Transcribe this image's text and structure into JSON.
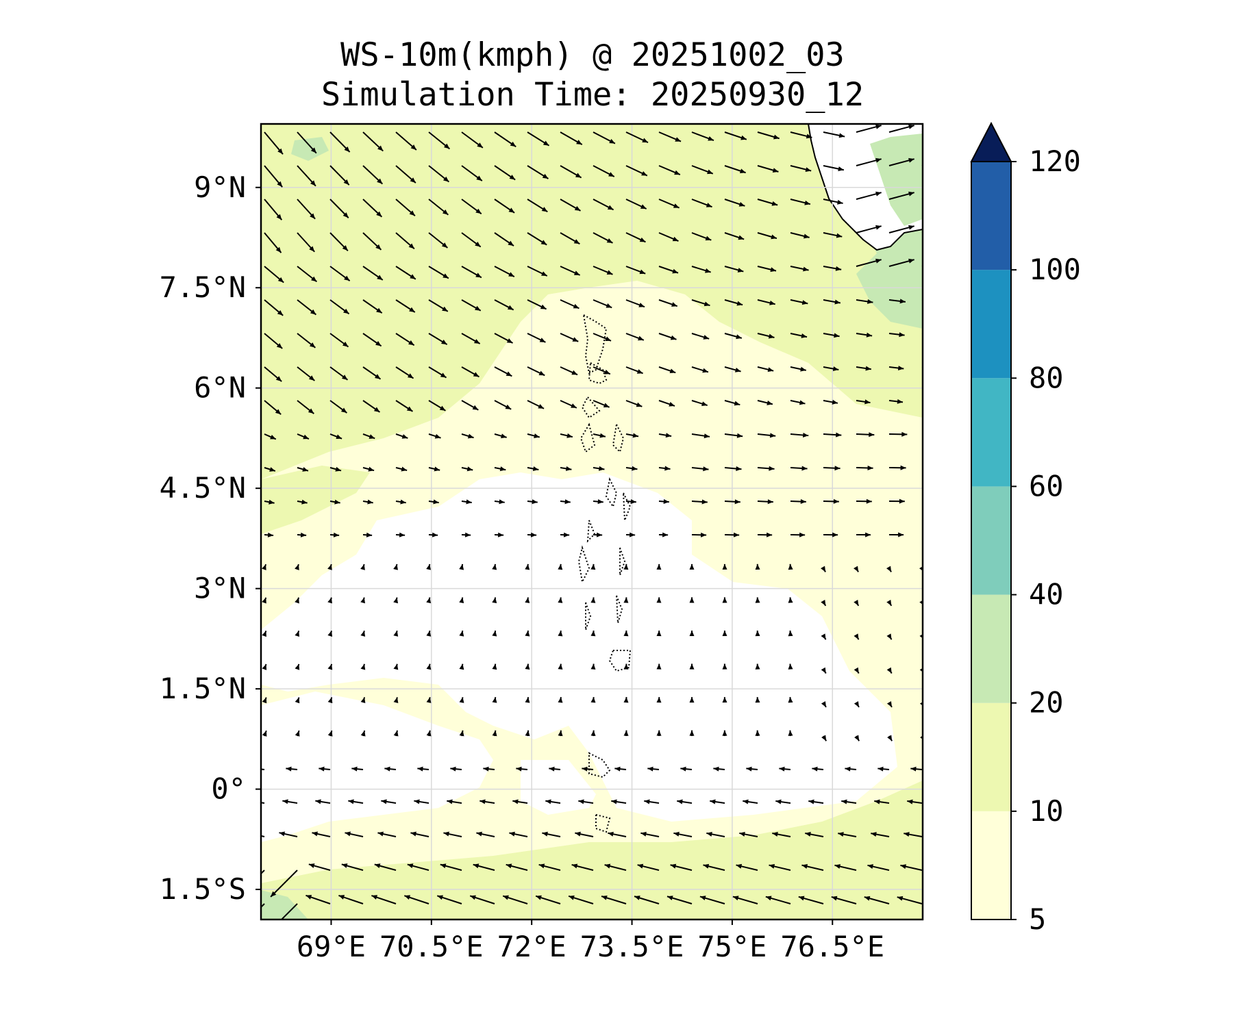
{
  "title": "WS-10m(kmph) @ 20251002_03",
  "subtitle": "Simulation Time: 20250930_12",
  "map": {
    "lon_range": [
      67.95,
      77.85
    ],
    "lat_range": [
      -1.95,
      9.95
    ],
    "lon_ticks": [
      {
        "value": 69,
        "label": "69°E"
      },
      {
        "value": 70.5,
        "label": "70.5°E"
      },
      {
        "value": 72,
        "label": "72°E"
      },
      {
        "value": 73.5,
        "label": "73.5°E"
      },
      {
        "value": 75,
        "label": "75°E"
      },
      {
        "value": 76.5,
        "label": "76.5°E"
      }
    ],
    "lat_ticks": [
      {
        "value": 9,
        "label": "9°N"
      },
      {
        "value": 7.5,
        "label": "7.5°N"
      },
      {
        "value": 6,
        "label": "6°N"
      },
      {
        "value": 4.5,
        "label": "4.5°N"
      },
      {
        "value": 3,
        "label": "3°N"
      },
      {
        "value": 1.5,
        "label": "1.5°N"
      },
      {
        "value": 0,
        "label": "0°"
      },
      {
        "value": -1.5,
        "label": "1.5°S"
      }
    ],
    "gridlines": true
  },
  "colorbar": {
    "levels": [
      5,
      10,
      20,
      40,
      60,
      80,
      100,
      120
    ],
    "labels": [
      "5",
      "10",
      "20",
      "40",
      "60",
      "80",
      "100",
      "120"
    ],
    "colors": [
      "#ffffd9",
      "#edf8b1",
      "#c7e9b4",
      "#7fcdbb",
      "#41b6c4",
      "#1d91c0",
      "#225ea8",
      "#253494"
    ],
    "extend_color": "#081d58",
    "extend": "max"
  },
  "colors": {
    "calm": "#ffffff",
    "light": "#ffffd9",
    "moderate": "#edf8b1",
    "fresh": "#c7e9b4",
    "arrow": "#000000",
    "grid": "#d9d9d9"
  }
}
